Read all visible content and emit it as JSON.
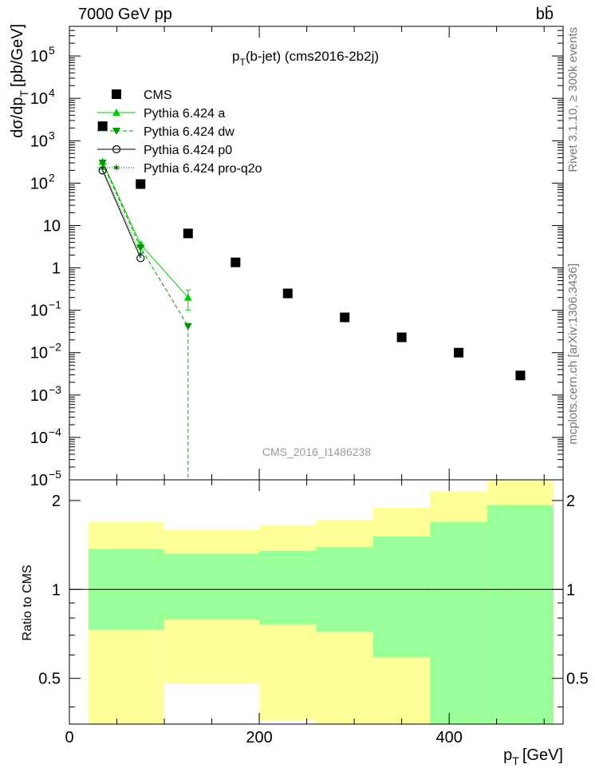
{
  "header": {
    "left_label": "7000 GeV pp",
    "right_label": "bb̄"
  },
  "side_labels": {
    "rivet": "Rivet 3.1.10, ≥ 300k events",
    "mcplots": "mcplots.cern.ch [arXiv:1306.3436]"
  },
  "chart_data": [
    {
      "type": "scatter",
      "panel": "main",
      "title_main": "p",
      "title_sub": "T",
      "title_rest": "(b-jet) (cms2016-2b2j)",
      "watermark": "CMS_2016_I1486238",
      "ylabel": "dσ/dp_T [pb/GeV]",
      "ylabel_main": "dσ/dp",
      "ylabel_sub": "T",
      "ylabel_rest": "[pb/GeV]",
      "yscale": "log",
      "ylim": [
        1e-05,
        500000.0
      ],
      "xlim": [
        0,
        520
      ],
      "ytick_labels": [
        {
          "value": 100000.0,
          "base": "10",
          "exp": "5"
        },
        {
          "value": 10000.0,
          "base": "10",
          "exp": "4"
        },
        {
          "value": 1000.0,
          "base": "10",
          "exp": "3"
        },
        {
          "value": 100.0,
          "base": "10",
          "exp": "2"
        },
        {
          "value": 10,
          "base": "10",
          "exp": ""
        },
        {
          "value": 1,
          "base": "1",
          "exp": ""
        },
        {
          "value": 0.1,
          "base": "10",
          "exp": "−1"
        },
        {
          "value": 0.01,
          "base": "10",
          "exp": "−2"
        },
        {
          "value": 0.001,
          "base": "10",
          "exp": "−3"
        },
        {
          "value": 0.0001,
          "base": "10",
          "exp": "−4"
        },
        {
          "value": 1e-05,
          "base": "10",
          "exp": "−5"
        }
      ],
      "legend": [
        {
          "label": "CMS",
          "marker": "square",
          "line": "none",
          "color": "#000000"
        },
        {
          "label": "Pythia 6.424 a",
          "marker": "triangle-up",
          "line": "solid",
          "color": "#00cc00"
        },
        {
          "label": "Pythia 6.424 dw",
          "marker": "triangle-down",
          "line": "dashed",
          "color": "#009900"
        },
        {
          "label": "Pythia 6.424 p0",
          "marker": "circle-open",
          "line": "solid",
          "color": "#000000"
        },
        {
          "label": "Pythia 6.424 pro-q2o",
          "marker": "star",
          "line": "dotted",
          "color": "#006600"
        }
      ],
      "series": [
        {
          "name": "CMS",
          "x": [
            35,
            75,
            125,
            175,
            230,
            290,
            350,
            410,
            475
          ],
          "y": [
            2200,
            95,
            6.5,
            1.35,
            0.25,
            0.068,
            0.023,
            0.01,
            0.0029
          ]
        },
        {
          "name": "Pythia 6.424 a",
          "x": [
            35,
            75,
            125
          ],
          "y": [
            320,
            3.6,
            0.2
          ],
          "yerr": [
            0,
            0.4,
            0.1
          ]
        },
        {
          "name": "Pythia 6.424 dw",
          "x": [
            35,
            75,
            125,
            125
          ],
          "y": [
            300,
            3.0,
            0.042,
            1e-05
          ]
        },
        {
          "name": "Pythia 6.424 p0",
          "x": [
            35,
            75
          ],
          "y": [
            200,
            1.7
          ]
        },
        {
          "name": "Pythia 6.424 pro-q2o",
          "x": [
            35,
            75
          ],
          "y": [
            220,
            2.1
          ]
        }
      ]
    },
    {
      "type": "area",
      "panel": "ratio",
      "ylabel": "Ratio to CMS",
      "xlabel": "p_T [GeV]",
      "xlabel_main": "p",
      "xlabel_sub": "T",
      "xlabel_rest": "[GeV]",
      "yscale": "log",
      "ylim": [
        0.35,
        2.35
      ],
      "xlim": [
        0,
        520
      ],
      "xticks": [
        0,
        200,
        400
      ],
      "yticks": [
        0.5,
        1,
        2
      ],
      "ytick_labels": [
        "0.5",
        "1",
        "2"
      ],
      "reference_line": 1,
      "bins": [
        {
          "lo": 20,
          "hi": 100,
          "inner": [
            0.73,
            1.37
          ],
          "outer": [
            0.25,
            1.69
          ]
        },
        {
          "lo": 100,
          "hi": 200,
          "inner": [
            0.79,
            1.32
          ],
          "outer": [
            0.48,
            1.59
          ]
        },
        {
          "lo": 200,
          "hi": 260,
          "inner": [
            0.76,
            1.35
          ],
          "outer": [
            0.36,
            1.65
          ]
        },
        {
          "lo": 260,
          "hi": 320,
          "inner": [
            0.72,
            1.39
          ],
          "outer": [
            0.25,
            1.72
          ]
        },
        {
          "lo": 320,
          "hi": 380,
          "inner": [
            0.59,
            1.51
          ],
          "outer": [
            0.25,
            1.89
          ]
        },
        {
          "lo": 380,
          "hi": 440,
          "inner": [
            0.25,
            1.69
          ],
          "outer": [
            0.25,
            2.15
          ]
        },
        {
          "lo": 440,
          "hi": 510,
          "inner": [
            0.25,
            1.93
          ],
          "outer": [
            0.25,
            2.6
          ]
        }
      ]
    }
  ]
}
